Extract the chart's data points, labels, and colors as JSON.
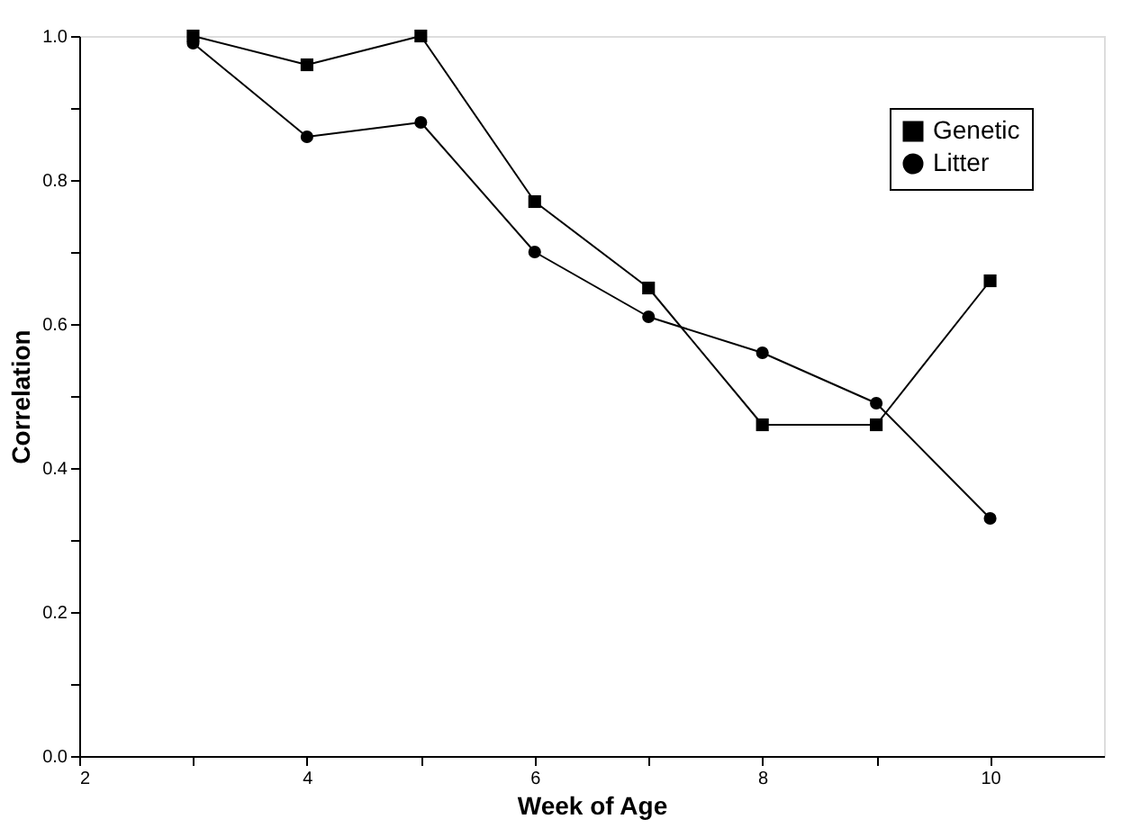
{
  "chart_data": {
    "type": "line",
    "xlabel": "Week of Age",
    "ylabel": "Correlation",
    "x": [
      3,
      4,
      5,
      6,
      7,
      8,
      9,
      10
    ],
    "series": [
      {
        "name": "Genetic",
        "color": "#000000",
        "marker": "square",
        "values": [
          1.0,
          0.96,
          1.0,
          0.77,
          0.65,
          0.46,
          0.46,
          0.66
        ]
      },
      {
        "name": "Litter",
        "color": "#000000",
        "marker": "circle",
        "values": [
          0.99,
          0.86,
          0.88,
          0.7,
          0.61,
          0.56,
          0.49,
          0.33
        ]
      }
    ],
    "xlim": [
      2,
      11
    ],
    "xticks": [
      2,
      {
        "value": 3,
        "label": null
      },
      4,
      {
        "value": 5,
        "label": null
      },
      6,
      {
        "value": 7,
        "label": null
      },
      8,
      {
        "value": 9,
        "label": null
      },
      10
    ],
    "ylim": [
      0,
      1.0
    ],
    "yticks": [
      {
        "value": 0,
        "label": "0.0"
      },
      {
        "value": 0.1,
        "label": null
      },
      {
        "value": 0.2,
        "label": "0.2"
      },
      {
        "value": 0.3,
        "label": null
      },
      {
        "value": 0.4,
        "label": "0.4"
      },
      {
        "value": 0.5,
        "label": null
      },
      {
        "value": 0.6,
        "label": "0.6"
      },
      {
        "value": 0.7,
        "label": null
      },
      {
        "value": 0.8,
        "label": "0.8"
      },
      {
        "value": 0.9,
        "label": null
      },
      {
        "value": 1.0,
        "label": "1.0"
      }
    ],
    "grid": false,
    "legend": "top right",
    "line_style": "solid"
  }
}
